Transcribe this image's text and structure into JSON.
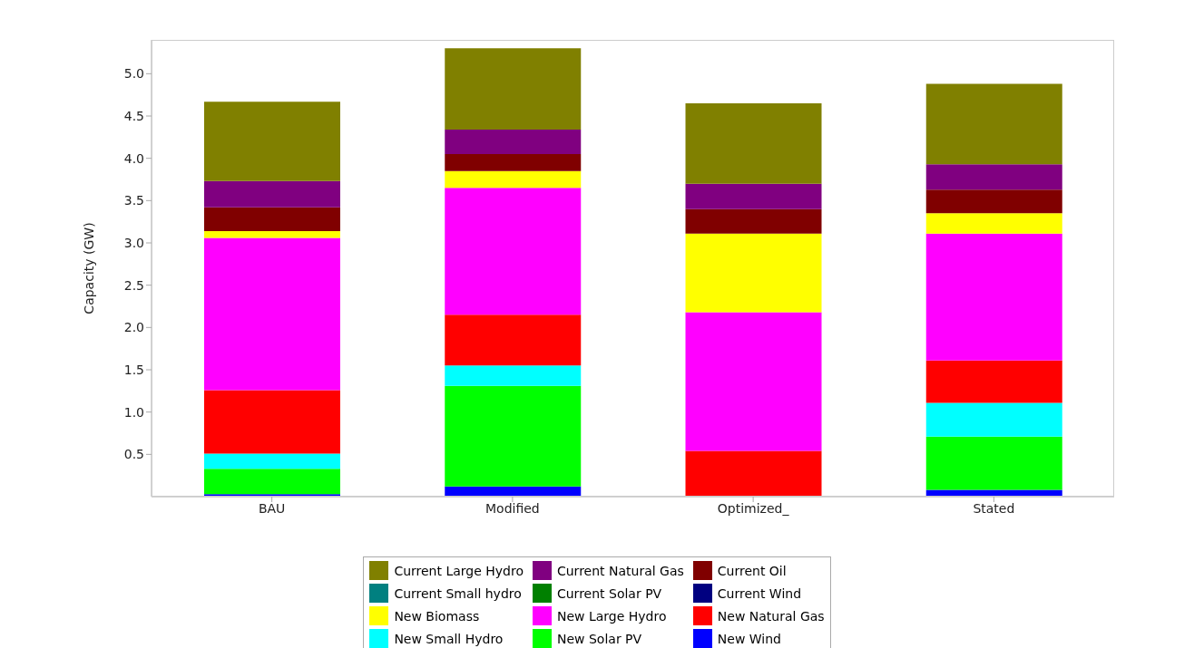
{
  "chart_data": {
    "type": "bar",
    "stacked": true,
    "ylabel": "Capacity (GW)",
    "categories": [
      "BAU",
      "Modified",
      "Optimized_",
      "Stated"
    ],
    "ylim": [
      0,
      5.4
    ],
    "yticks": [
      {
        "value": 0.5,
        "label": "0.5"
      },
      {
        "value": 1,
        "label": "1.0"
      },
      {
        "value": 1.5,
        "label": "1.5"
      },
      {
        "value": 2,
        "label": "2.0"
      },
      {
        "value": 2.5,
        "label": "2.5"
      },
      {
        "value": 3,
        "label": "3.0"
      },
      {
        "value": 3.5,
        "label": "3.5"
      },
      {
        "value": 4,
        "label": "4.0"
      },
      {
        "value": 4.5,
        "label": "4.5"
      },
      {
        "value": 5,
        "label": "5.0"
      }
    ],
    "legend": "bottom",
    "grid": false,
    "series": [
      {
        "name": "New Wind",
        "color": "#0000ff",
        "values": [
          0.03,
          0.12,
          0,
          0.08
        ]
      },
      {
        "name": "New Solar PV",
        "color": "#00ff00",
        "values": [
          0.3,
          1.19,
          0,
          0.63
        ]
      },
      {
        "name": "New Small Hydro",
        "color": "#00ffff",
        "values": [
          0.18,
          0.24,
          0,
          0.4
        ]
      },
      {
        "name": "New Natural Gas",
        "color": "#ff0000",
        "values": [
          0.75,
          0.6,
          0.54,
          0.5
        ]
      },
      {
        "name": "New Large Hydro",
        "color": "#ff00ff",
        "values": [
          1.8,
          1.5,
          1.64,
          1.5
        ]
      },
      {
        "name": "New Biomass",
        "color": "#ffff00",
        "values": [
          0.08,
          0.2,
          0.93,
          0.24
        ]
      },
      {
        "name": "Current Wind",
        "color": "#000080",
        "values": [
          0,
          0,
          0,
          0
        ]
      },
      {
        "name": "Current Solar PV",
        "color": "#008000",
        "values": [
          0,
          0,
          0,
          0
        ]
      },
      {
        "name": "Current Small hydro",
        "color": "#008080",
        "values": [
          0,
          0,
          0,
          0
        ]
      },
      {
        "name": "Current Oil",
        "color": "#800000",
        "values": [
          0.28,
          0.2,
          0.29,
          0.28
        ]
      },
      {
        "name": "Current Natural Gas",
        "color": "#800080",
        "values": [
          0.31,
          0.29,
          0.3,
          0.3
        ]
      },
      {
        "name": "Current Large Hydro",
        "color": "#808000",
        "values": [
          0.94,
          0.96,
          0.95,
          0.95
        ]
      }
    ]
  }
}
